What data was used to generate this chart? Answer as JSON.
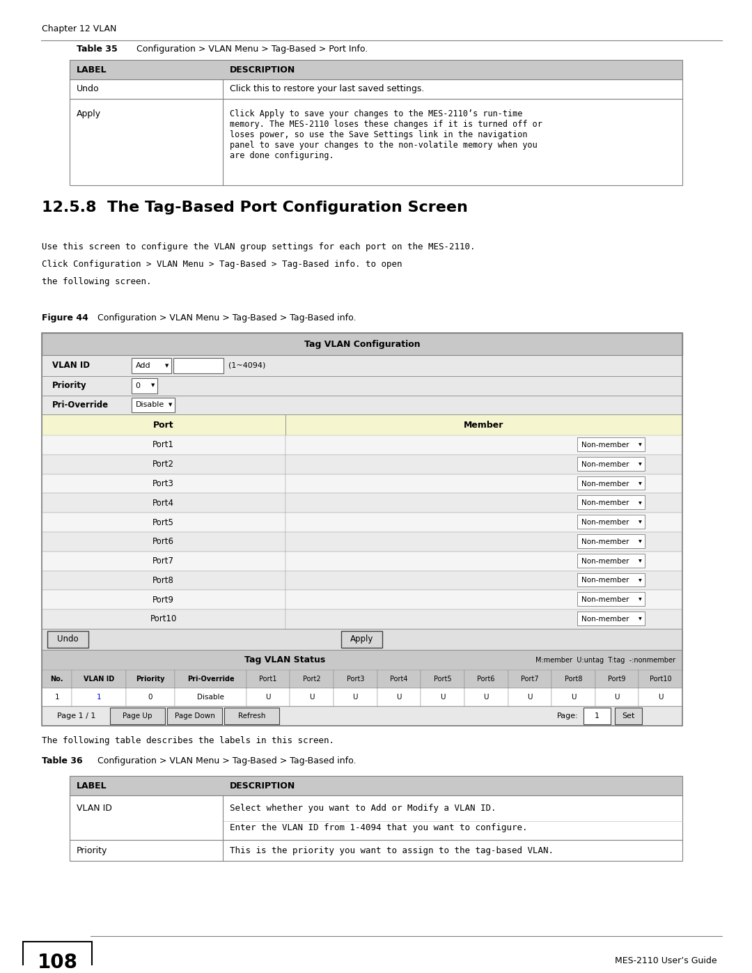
{
  "page_width": 10.8,
  "page_height": 13.97,
  "bg_color": "#ffffff",
  "header_text": "Chapter 12 VLAN",
  "table35_title": "Table 35   Configuration > VLAN Menu > Tag-Based > Port Info.",
  "table35_headers": [
    "LABEL",
    "DESCRIPTION"
  ],
  "table35_rows": [
    [
      "Undo",
      "Click this to restore your last saved settings."
    ],
    [
      "Apply",
      "Click Apply to save your changes to the MES-2110's run-time\nmemory. The MES-2110 loses these changes if it is turned off or\nloses power, so use the Save Settings link in the navigation\npanel to save your changes to the non-volatile memory when you\nare done configuring."
    ]
  ],
  "section_title": "12.5.8  The Tag-Based Port Configuration Screen",
  "intro_text": "Use this screen to configure the VLAN group settings for each port on the MES-2110.\nClick Configuration > VLAN Menu > Tag-Based > Tag-Based info. to open\nthe following screen.",
  "figure_caption": "Figure 44   Configuration > VLAN Menu > Tag-Based > Tag-Based info.",
  "fig_title": "Tag VLAN Configuration",
  "vlan_id_label": "VLAN ID",
  "vlan_id_dropdown": "Add",
  "vlan_id_range": "(1~4094)",
  "priority_label": "Priority",
  "priority_val": "0",
  "pri_override_label": "Pri-Override",
  "pri_override_val": "Disable",
  "port_col_header": "Port",
  "member_col_header": "Member",
  "ports": [
    "Port1",
    "Port2",
    "Port3",
    "Port4",
    "Port5",
    "Port6",
    "Port7",
    "Port8",
    "Port9",
    "Port10"
  ],
  "member_val": "Non-member",
  "undo_btn": "Undo",
  "apply_btn": "Apply",
  "status_title": "Tag VLAN Status",
  "status_legend": "M:member  U:untag  T:tag  -:nonmember",
  "status_col_headers": [
    "No.",
    "VLAN ID",
    "Priority",
    "Pri-Override",
    "Port1",
    "Port2",
    "Port3",
    "Port4",
    "Port5",
    "Port6",
    "Port7",
    "Port8",
    "Port9",
    "Port10"
  ],
  "status_row": [
    "1",
    "1",
    "0",
    "Disable",
    "U",
    "U",
    "U",
    "U",
    "U",
    "U",
    "U",
    "U",
    "U",
    "U"
  ],
  "paging": "Page 1 / 1",
  "paging_btns": [
    "Page Up",
    "Page Down",
    "Refresh"
  ],
  "page_label": "Page:",
  "page_val": "1",
  "set_btn": "Set",
  "table36_intro": "The following table describes the labels in this screen.",
  "table36_title": "Table 36   Configuration > VLAN Menu > Tag-Based > Tag-Based info.",
  "table36_headers": [
    "LABEL",
    "DESCRIPTION"
  ],
  "table36_rows": [
    [
      "VLAN ID",
      "Select whether you want to Add or Modify a VLAN ID.\n\nEnter the VLAN ID from 1-4094 that you want to configure."
    ],
    [
      "Priority",
      "This is the priority you want to assign to the tag-based VLAN."
    ]
  ],
  "footer_page_num": "108",
  "footer_right": "MES-2110 User’s Guide",
  "header_color": "#d0d0d0",
  "table_border_color": "#808080",
  "fig_border_color": "#808080",
  "fig_header_bg": "#c8c8c8",
  "fig_row_bg_alt": "#f0f0f0",
  "fig_row_bg": "#e8e8e8",
  "port_header_bg": "#f5f5d0",
  "status_header_bg": "#c8c8c8",
  "table_header_bg": "#c8c8c8"
}
